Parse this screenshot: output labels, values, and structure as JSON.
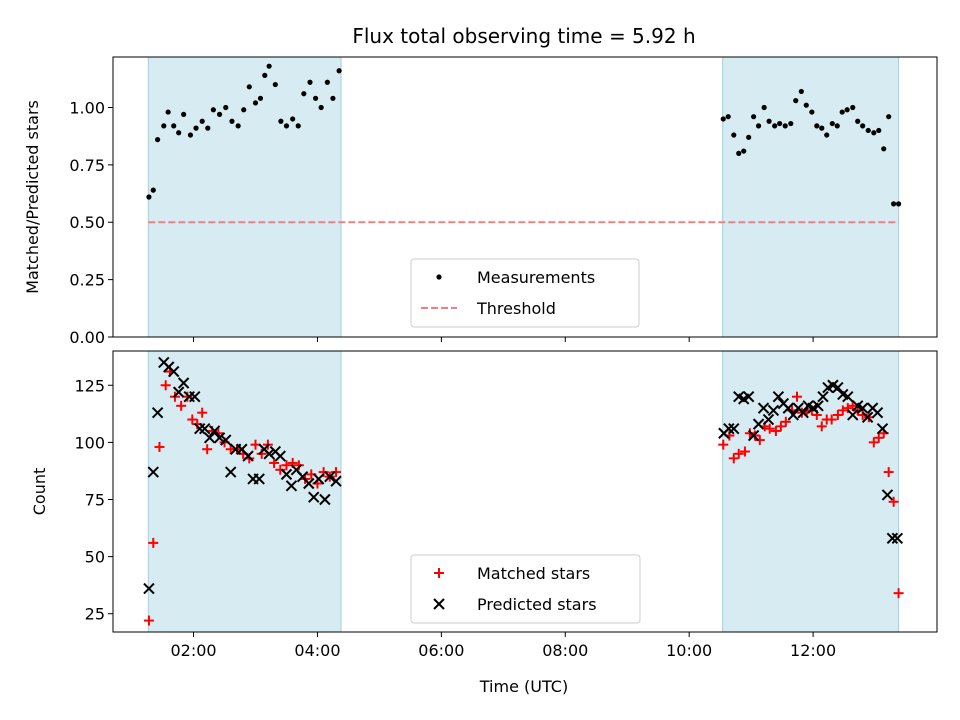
{
  "figure": {
    "title": "Flux total observing time = 5.92 h",
    "xlabel": "Time (UTC)",
    "x_ticks": [
      {
        "value": 2,
        "label": "02:00"
      },
      {
        "value": 4,
        "label": "04:00"
      },
      {
        "value": 6,
        "label": "06:00"
      },
      {
        "value": 8,
        "label": "08:00"
      },
      {
        "value": 10,
        "label": "10:00"
      },
      {
        "value": 12,
        "label": "12:00"
      }
    ],
    "xlim": [
      0.7,
      14.0
    ]
  },
  "chart_data": [
    {
      "type": "scatter",
      "ylabel": "Matched/Predicted stars",
      "ylim": [
        0,
        1.22
      ],
      "y_ticks": [
        {
          "value": 0,
          "label": "0.00"
        },
        {
          "value": 0.25,
          "label": "0.25"
        },
        {
          "value": 0.5,
          "label": "0.50"
        },
        {
          "value": 0.75,
          "label": "0.75"
        },
        {
          "value": 1.0,
          "label": "1.00"
        }
      ],
      "shaded_intervals": [
        [
          1.27,
          4.38
        ],
        [
          10.54,
          13.38
        ]
      ],
      "legend": {
        "placement": "lower-center",
        "entries": [
          {
            "label": "Measurements",
            "marker": "dot",
            "color": "#000000"
          },
          {
            "label": "Threshold",
            "marker": "dashed-line",
            "color": "#f08080"
          }
        ]
      },
      "threshold": {
        "y": 0.5,
        "x_range": [
          1.27,
          13.38
        ],
        "color": "#f08080"
      },
      "series": [
        {
          "name": "Measurements",
          "color": "#000000",
          "x": [
            1.28,
            1.35,
            1.42,
            1.52,
            1.59,
            1.68,
            1.76,
            1.84,
            1.95,
            2.04,
            2.14,
            2.23,
            2.32,
            2.42,
            2.52,
            2.62,
            2.72,
            2.81,
            2.9,
            3.0,
            3.08,
            3.15,
            3.22,
            3.32,
            3.41,
            3.5,
            3.6,
            3.69,
            3.78,
            3.88,
            3.97,
            4.06,
            4.16,
            4.25,
            4.35,
            10.55,
            10.63,
            10.72,
            10.8,
            10.88,
            10.96,
            11.04,
            11.12,
            11.21,
            11.29,
            11.38,
            11.46,
            11.55,
            11.64,
            11.72,
            11.81,
            11.89,
            11.98,
            12.06,
            12.14,
            12.22,
            12.31,
            12.39,
            12.47,
            12.55,
            12.64,
            12.72,
            12.8,
            12.89,
            12.98,
            13.06,
            13.14,
            13.22,
            13.3,
            13.38
          ],
          "y": [
            0.61,
            0.64,
            0.86,
            0.92,
            0.98,
            0.92,
            0.89,
            0.97,
            0.88,
            0.91,
            0.94,
            0.91,
            0.99,
            0.97,
            1.0,
            0.94,
            0.92,
            0.99,
            1.09,
            1.02,
            1.04,
            1.14,
            1.18,
            1.1,
            0.94,
            0.92,
            0.95,
            0.92,
            1.06,
            1.11,
            1.04,
            1.0,
            1.11,
            1.04,
            1.16,
            0.95,
            0.96,
            0.88,
            0.8,
            0.81,
            0.87,
            0.96,
            0.92,
            1.0,
            0.94,
            0.92,
            0.93,
            0.92,
            0.93,
            1.03,
            1.07,
            1.01,
            0.98,
            0.92,
            0.91,
            0.88,
            0.93,
            0.92,
            0.98,
            0.99,
            1.0,
            0.94,
            0.92,
            0.9,
            0.89,
            0.9,
            0.82,
            0.96,
            0.58,
            0.58
          ]
        }
      ]
    },
    {
      "type": "scatter",
      "ylabel": "Count",
      "ylim": [
        17,
        140
      ],
      "y_ticks": [
        {
          "value": 25,
          "label": "25"
        },
        {
          "value": 50,
          "label": "50"
        },
        {
          "value": 75,
          "label": "75"
        },
        {
          "value": 100,
          "label": "100"
        },
        {
          "value": 125,
          "label": "125"
        }
      ],
      "shaded_intervals": [
        [
          1.27,
          4.38
        ],
        [
          10.54,
          13.38
        ]
      ],
      "legend": {
        "placement": "lower-center",
        "entries": [
          {
            "label": "Matched stars",
            "marker": "plus",
            "color": "#ff0000"
          },
          {
            "label": "Predicted stars",
            "marker": "x",
            "color": "#000000"
          }
        ]
      },
      "series": [
        {
          "name": "Matched stars",
          "color": "#ff0000",
          "marker": "plus",
          "x": [
            1.28,
            1.35,
            1.45,
            1.55,
            1.62,
            1.7,
            1.8,
            1.9,
            1.98,
            2.06,
            2.14,
            2.22,
            2.3,
            2.4,
            2.5,
            2.6,
            2.7,
            2.8,
            2.9,
            3.0,
            3.1,
            3.2,
            3.3,
            3.4,
            3.5,
            3.6,
            3.7,
            3.8,
            3.9,
            4.0,
            4.1,
            4.2,
            4.3,
            10.55,
            10.65,
            10.72,
            10.8,
            10.9,
            10.98,
            11.06,
            11.14,
            11.22,
            11.3,
            11.4,
            11.48,
            11.56,
            11.66,
            11.74,
            11.82,
            11.9,
            11.98,
            12.06,
            12.14,
            12.22,
            12.3,
            12.4,
            12.48,
            12.56,
            12.64,
            12.72,
            12.8,
            12.9,
            12.98,
            13.06,
            13.14,
            13.22,
            13.3,
            13.38
          ],
          "y": [
            22,
            56,
            98,
            125,
            131,
            120,
            116,
            120,
            110,
            108,
            113,
            97,
            105,
            104,
            100,
            97,
            97,
            95,
            93,
            99,
            95,
            99,
            91,
            88,
            90,
            91,
            90,
            84,
            86,
            82,
            87,
            85,
            87,
            99,
            103,
            93,
            95,
            96,
            104,
            103,
            101,
            107,
            106,
            105,
            107,
            109,
            114,
            120,
            113,
            114,
            114,
            112,
            107,
            110,
            110,
            112,
            114,
            115,
            116,
            114,
            112,
            111,
            100,
            102,
            104,
            87,
            74,
            34
          ]
        },
        {
          "name": "Predicted stars",
          "color": "#000000",
          "marker": "x",
          "x": [
            1.28,
            1.35,
            1.42,
            1.52,
            1.6,
            1.68,
            1.76,
            1.84,
            1.93,
            2.02,
            2.1,
            2.18,
            2.26,
            2.34,
            2.42,
            2.52,
            2.6,
            2.68,
            2.78,
            2.88,
            2.96,
            3.06,
            3.14,
            3.22,
            3.32,
            3.4,
            3.5,
            3.58,
            3.66,
            3.76,
            3.86,
            3.94,
            4.02,
            4.12,
            4.2,
            4.3,
            10.56,
            10.64,
            10.72,
            10.8,
            10.88,
            10.96,
            11.04,
            11.12,
            11.2,
            11.28,
            11.36,
            11.44,
            11.52,
            11.6,
            11.68,
            11.76,
            11.84,
            11.92,
            12.0,
            12.08,
            12.16,
            12.24,
            12.32,
            12.4,
            12.48,
            12.56,
            12.64,
            12.72,
            12.8,
            12.88,
            12.96,
            13.04,
            13.12,
            13.2,
            13.28,
            13.36
          ],
          "y": [
            36,
            87,
            113,
            135,
            133,
            131,
            122,
            126,
            120,
            120,
            106,
            106,
            102,
            105,
            102,
            101,
            87,
            97,
            97,
            94,
            84,
            84,
            97,
            95,
            96,
            94,
            86,
            81,
            88,
            85,
            82,
            76,
            84,
            75,
            85,
            83,
            104,
            106,
            106,
            120,
            119,
            120,
            103,
            108,
            115,
            110,
            114,
            120,
            117,
            115,
            112,
            115,
            113,
            116,
            115,
            116,
            120,
            124,
            125,
            124,
            121,
            120,
            112,
            116,
            115,
            111,
            115,
            113,
            106,
            77,
            58,
            58
          ]
        }
      ]
    }
  ]
}
